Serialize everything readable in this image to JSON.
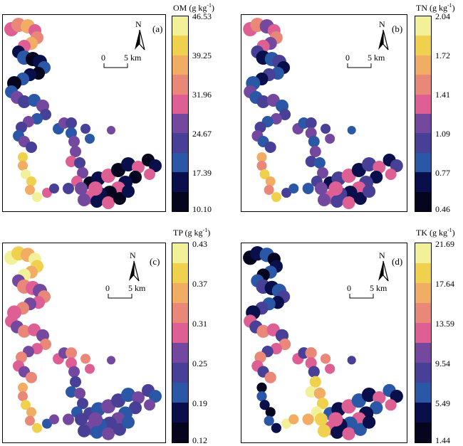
{
  "colors": [
    "#f2f19a",
    "#f0d14e",
    "#f2ad64",
    "#e98878",
    "#de5f94",
    "#73489e",
    "#483f96",
    "#2a57a6",
    "#080f4a",
    "#05051e"
  ],
  "panels": [
    {
      "letter": "(a)",
      "title": "OM (g kg",
      "title_sup": "-1",
      "title_close": ")",
      "ticks": [
        "46.53",
        "39.25",
        "31.96",
        "24.67",
        "17.39",
        "10.10"
      ],
      "north": "N",
      "scale_zero": "0",
      "scale_five": "5 km",
      "map_icon": "om-distribution-map"
    },
    {
      "letter": "(b)",
      "title": "TN (g kg",
      "title_sup": "-1",
      "title_close": ")",
      "ticks": [
        "2.04",
        "1.72",
        "1.41",
        "1.09",
        "0.77",
        "0.46"
      ],
      "north": "N",
      "scale_zero": "0",
      "scale_five": "5 km",
      "map_icon": "tn-distribution-map"
    },
    {
      "letter": "(c)",
      "title": "TP (g kg",
      "title_sup": "-1",
      "title_close": ")",
      "ticks": [
        "0.43",
        "0.37",
        "0.31",
        "0.25",
        "0.19",
        "0.12"
      ],
      "north": "N",
      "scale_zero": "0",
      "scale_five": "5 km",
      "map_icon": "tp-distribution-map"
    },
    {
      "letter": "(d)",
      "title": "TK (g kg",
      "title_sup": "-1",
      "title_close": ")",
      "ticks": [
        "21.69",
        "17.64",
        "13.59",
        "9.54",
        "5.49",
        "1.44"
      ],
      "north": "N",
      "scale_zero": "0",
      "scale_five": "5 km",
      "map_icon": "tk-distribution-map"
    }
  ]
}
